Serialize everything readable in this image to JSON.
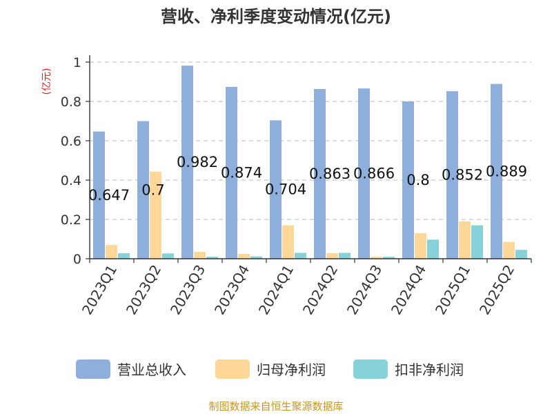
{
  "chart_data": {
    "type": "bar",
    "title": "营收、净利季度变动情况(亿元)",
    "y_unit_label": "(亿元)",
    "ylim": [
      0,
      1
    ],
    "yticks": [
      "0",
      "0.2",
      "0.4",
      "0.6",
      "0.8",
      "1"
    ],
    "ytick_values": [
      0,
      0.2,
      0.4,
      0.6,
      0.8,
      1
    ],
    "grid": true,
    "legend_position": "bottom",
    "categories": [
      "2023Q1",
      "2023Q2",
      "2023Q3",
      "2023Q4",
      "2024Q1",
      "2024Q2",
      "2024Q3",
      "2024Q4",
      "2025Q1",
      "2025Q2"
    ],
    "series": [
      {
        "name": "营业总收入",
        "color": "#8eaedb",
        "values": [
          0.647,
          0.7,
          0.982,
          0.874,
          0.704,
          0.863,
          0.866,
          0.8,
          0.852,
          0.889
        ],
        "labels": [
          "0.647",
          "0.7",
          "0.982",
          "0.874",
          "0.704",
          "0.863",
          "0.866",
          "0.8",
          "0.852",
          "0.889"
        ]
      },
      {
        "name": "归母净利润",
        "color": "#fdd898",
        "values": [
          0.07,
          0.443,
          0.035,
          0.025,
          0.17,
          0.028,
          0.01,
          0.13,
          0.19,
          0.085
        ]
      },
      {
        "name": "扣非净利润",
        "color": "#85d3d8",
        "values": [
          0.028,
          0.027,
          0.01,
          0.012,
          0.03,
          0.03,
          0.01,
          0.097,
          0.17,
          0.045
        ]
      }
    ],
    "source": "制图数据来自恒生聚源数据库"
  }
}
